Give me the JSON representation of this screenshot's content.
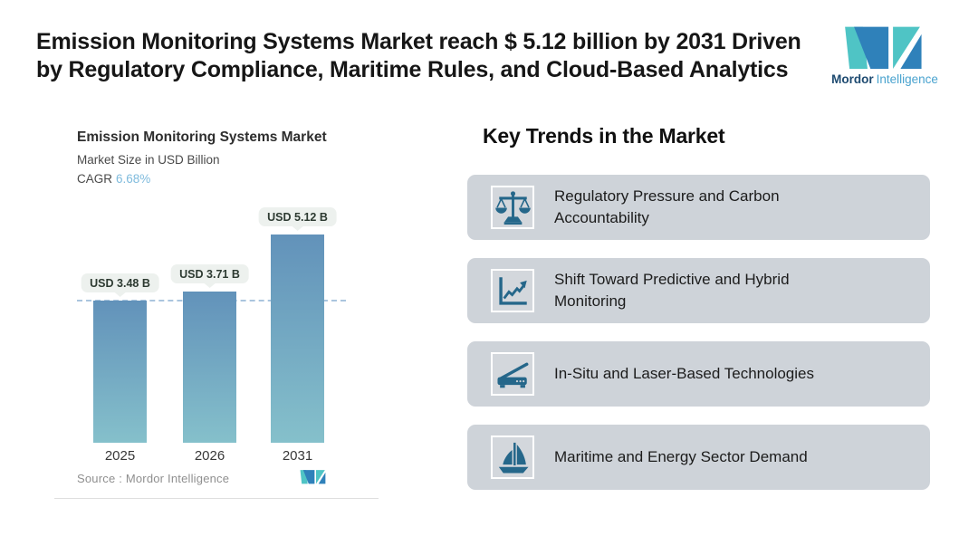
{
  "page": {
    "title_line1": "Emission Monitoring Systems Market reach $ 5.12 billion by 2031 Driven",
    "title_line2": "by Regulatory Compliance, Maritime Rules, and Cloud-Based Analytics"
  },
  "brand": {
    "name_bold": "Mordor",
    "name_light": "Intelligence",
    "logo_teal": "#4fc4c5",
    "logo_blue": "#2f81ba"
  },
  "chart_card": {
    "title": "Emission Monitoring Systems Market",
    "subtitle": "Market Size in USD Billion",
    "cagr_label": "CAGR",
    "cagr_value": "6.68%",
    "source_label": "Source :  Mordor Intelligence"
  },
  "chart_data": {
    "type": "bar",
    "title": "Emission Monitoring Systems Market",
    "subtitle": "Market Size in USD Billion",
    "cagr": "6.68%",
    "categories": [
      "2025",
      "2026",
      "2031"
    ],
    "values": [
      3.48,
      3.71,
      5.12
    ],
    "bar_labels": [
      "USD 3.48 B",
      "USD 3.71 B",
      "USD 5.12 B"
    ],
    "unit": "USD Billion",
    "reference_line": 3.48,
    "ylim": [
      0,
      5.7
    ],
    "grid": false,
    "legend": "none",
    "bar_gradient_top": "#6292ba",
    "bar_gradient_bottom": "#85c0cb",
    "reference_line_color": "#aac5de",
    "source": "Source :  Mordor Intelligence"
  },
  "trends": {
    "heading": "Key Trends in the Market",
    "card_bg": "#ced3d9",
    "icon_color": "#25678a",
    "items": [
      {
        "icon": "scales-icon",
        "label": "Regulatory Pressure and Carbon\nAccountability"
      },
      {
        "icon": "line-chart-icon",
        "label": "Shift Toward Predictive and Hybrid\nMonitoring"
      },
      {
        "icon": "scanner-laser-icon",
        "label": "In-Situ and Laser-Based Technologies"
      },
      {
        "icon": "sailboat-icon",
        "label": "Maritime and Energy Sector Demand"
      }
    ]
  }
}
